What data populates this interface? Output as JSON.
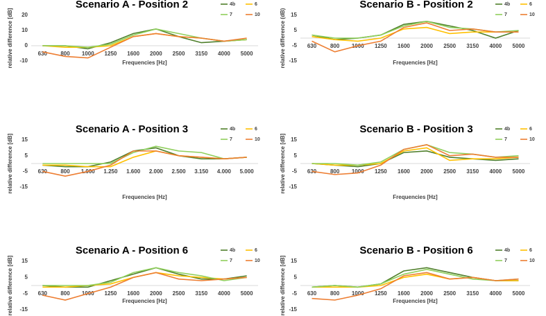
{
  "chart_data": [
    {
      "type": "line",
      "title": "Scenario A - Position 2",
      "xlabel": "Frequencies [Hz]",
      "ylabel": "relative difference  [dB]",
      "categories": [
        "630",
        "800",
        "1000",
        "1250",
        "1600",
        "2000",
        "2500",
        "3150",
        "4000",
        "5000"
      ],
      "ylim": [
        -10,
        20
      ],
      "yticks": [
        -10,
        0,
        10,
        20
      ],
      "series": [
        {
          "name": "4b",
          "color": "#4f7f2a",
          "values": [
            0,
            0,
            -2,
            2,
            8,
            11,
            6,
            2,
            3,
            4
          ]
        },
        {
          "name": "6",
          "color": "#ffc000",
          "values": [
            0,
            -1,
            -1,
            0,
            6,
            8,
            6,
            5,
            3,
            4
          ]
        },
        {
          "name": "7",
          "color": "#8fcf5c",
          "values": [
            0,
            0,
            -1,
            1,
            7,
            11,
            8,
            5,
            3,
            4
          ]
        },
        {
          "name": "10",
          "color": "#ed7d31",
          "values": [
            -4,
            -7,
            -8,
            -1,
            6,
            8,
            6,
            5,
            3,
            5
          ]
        }
      ]
    },
    {
      "type": "line",
      "title": "Scenario B - Position 2",
      "xlabel": "Frequencies [Hz]",
      "ylabel": "relative difference  (dB)",
      "categories": [
        "630",
        "800",
        "1000",
        "1250",
        "1600",
        "2000",
        "2500",
        "3150",
        "4000",
        "5000"
      ],
      "ylim": [
        -15,
        15
      ],
      "yticks": [
        -15,
        -5,
        5,
        15
      ],
      "series": [
        {
          "name": "4b",
          "color": "#4f7f2a",
          "values": [
            2,
            -1,
            0,
            2,
            9,
            11,
            8,
            5,
            0,
            5
          ]
        },
        {
          "name": "6",
          "color": "#ffc000",
          "values": [
            1,
            -1,
            -2,
            0,
            6,
            7,
            3,
            4,
            4,
            4
          ]
        },
        {
          "name": "7",
          "color": "#8fcf5c",
          "values": [
            2,
            0,
            0,
            2,
            8,
            11,
            7,
            6,
            4,
            5
          ]
        },
        {
          "name": "10",
          "color": "#ed7d31",
          "values": [
            -2,
            -9,
            -5,
            -2,
            7,
            10,
            5,
            6,
            4,
            4
          ]
        }
      ]
    },
    {
      "type": "line",
      "title": "Scenario A - Position 3",
      "xlabel": "Frequencies [Hz]",
      "ylabel": "relative difference  [dB]",
      "categories": [
        "630",
        "800",
        "1.000",
        "1.250",
        "1.600",
        "2.000",
        "2.500",
        "3.150",
        "4.000",
        "5.000"
      ],
      "ylim": [
        -15,
        15
      ],
      "yticks": [
        -15,
        -5,
        5,
        15
      ],
      "series": [
        {
          "name": "4b",
          "color": "#4f7f2a",
          "values": [
            -1,
            -2,
            -2,
            1,
            8,
            10,
            5,
            3,
            3,
            4
          ]
        },
        {
          "name": "6",
          "color": "#ffc000",
          "values": [
            -1,
            -1,
            -2,
            -2,
            4,
            8,
            5,
            4,
            3,
            4
          ]
        },
        {
          "name": "7",
          "color": "#8fcf5c",
          "values": [
            0,
            0,
            0,
            0,
            7,
            11,
            8,
            7,
            3,
            4
          ]
        },
        {
          "name": "10",
          "color": "#ed7d31",
          "values": [
            -5,
            -8,
            -5,
            -1,
            8,
            8,
            5,
            4,
            3,
            4
          ]
        }
      ]
    },
    {
      "type": "line",
      "title": "Scenario B - Position 3",
      "xlabel": "Frequencies [Hz]",
      "ylabel": "relative difference  [dB]",
      "categories": [
        "630",
        "800",
        "1000",
        "1250",
        "1600",
        "2000",
        "2500",
        "3150",
        "4000",
        "5000"
      ],
      "ylim": [
        -15,
        15
      ],
      "yticks": [
        -15,
        -5,
        5,
        15
      ],
      "series": [
        {
          "name": "4b",
          "color": "#4f7f2a",
          "values": [
            0,
            -1,
            -2,
            0,
            7,
            8,
            4,
            3,
            2,
            3
          ]
        },
        {
          "name": "6",
          "color": "#ffc000",
          "values": [
            0,
            -1,
            -1,
            0,
            8,
            10,
            2,
            3,
            3,
            4
          ]
        },
        {
          "name": "7",
          "color": "#8fcf5c",
          "values": [
            0,
            0,
            -1,
            1,
            9,
            12,
            7,
            6,
            4,
            5
          ]
        },
        {
          "name": "10",
          "color": "#ed7d31",
          "values": [
            -5,
            -7,
            -6,
            -1,
            9,
            12,
            5,
            6,
            4,
            4
          ]
        }
      ]
    },
    {
      "type": "line",
      "title": "Scenario A - Position 6",
      "xlabel": "Frequencies [Hz]",
      "ylabel": "relative difference  [dB]",
      "categories": [
        "630",
        "800",
        "1000",
        "1250",
        "1600",
        "2000",
        "2500",
        "3150",
        "4000",
        "5000"
      ],
      "ylim": [
        -15,
        15
      ],
      "yticks": [
        -15,
        -5,
        5,
        15
      ],
      "series": [
        {
          "name": "4b",
          "color": "#4f7f2a",
          "values": [
            0,
            -1,
            -1,
            3,
            7,
            11,
            7,
            4,
            4,
            6
          ]
        },
        {
          "name": "6",
          "color": "#ffc000",
          "values": [
            -1,
            -1,
            0,
            1,
            5,
            8,
            6,
            5,
            4,
            5
          ]
        },
        {
          "name": "7",
          "color": "#8fcf5c",
          "values": [
            0,
            0,
            0,
            2,
            8,
            11,
            8,
            6,
            3,
            5
          ]
        },
        {
          "name": "10",
          "color": "#ed7d31",
          "values": [
            -6,
            -9,
            -5,
            -1,
            5,
            8,
            4,
            3,
            4,
            5
          ]
        }
      ]
    },
    {
      "type": "line",
      "title": "Scenario B - Position 6",
      "xlabel": "Frequencies [Hz]",
      "ylabel": "relative difference  [dB]",
      "categories": [
        "630",
        "800",
        "1000",
        "1250",
        "1600",
        "2000",
        "2500",
        "3150",
        "4000",
        "5000"
      ],
      "ylim": [
        -15,
        15
      ],
      "yticks": [
        -15,
        -5,
        5,
        15
      ],
      "series": [
        {
          "name": "4b",
          "color": "#4f7f2a",
          "values": [
            -1,
            0,
            -1,
            1,
            9,
            11,
            8,
            5,
            3,
            3
          ]
        },
        {
          "name": "6",
          "color": "#ffc000",
          "values": [
            -1,
            -1,
            -1,
            0,
            5,
            7,
            4,
            5,
            3,
            3
          ]
        },
        {
          "name": "7",
          "color": "#8fcf5c",
          "values": [
            -1,
            0,
            -1,
            1,
            7,
            10,
            7,
            4,
            3,
            4
          ]
        },
        {
          "name": "10",
          "color": "#ed7d31",
          "values": [
            -8,
            -9,
            -6,
            -2,
            6,
            8,
            4,
            5,
            3,
            4
          ]
        }
      ]
    }
  ]
}
